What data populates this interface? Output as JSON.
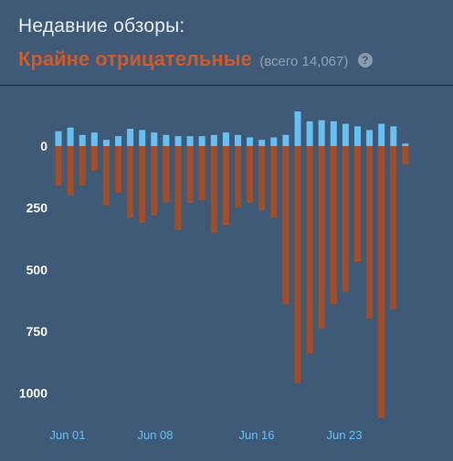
{
  "header": {
    "title": "Недавние обзоры:",
    "rating": "Крайне отрицательные",
    "total": "(всего 14,067)",
    "help_glyph": "?"
  },
  "colors": {
    "positive": "#66c0f4",
    "negative": "#a34c25",
    "rating": "#d05a2a",
    "background": "#3e5a77"
  },
  "chart_data": {
    "type": "bar",
    "x_tick_labels": [
      "Jun 01",
      "Jun 08",
      "Jun 16",
      "Jun 23"
    ],
    "y_tick_labels": [
      "0",
      "250",
      "500",
      "750",
      "1000"
    ],
    "y_tick_values": [
      0,
      250,
      500,
      750,
      1000
    ],
    "ylim": [
      -150,
      1100
    ],
    "grid": false,
    "series": [
      {
        "color": "#66c0f4",
        "values": [
          60,
          75,
          45,
          55,
          25,
          40,
          70,
          65,
          55,
          45,
          40,
          40,
          40,
          45,
          55,
          45,
          35,
          25,
          35,
          45,
          140,
          100,
          105,
          100,
          90,
          80,
          65,
          90,
          80,
          10
        ]
      },
      {
        "color": "#a34c25",
        "values": [
          160,
          200,
          160,
          100,
          240,
          190,
          290,
          310,
          280,
          230,
          340,
          230,
          220,
          350,
          320,
          250,
          230,
          260,
          290,
          640,
          960,
          840,
          740,
          640,
          590,
          470,
          700,
          1100,
          660,
          75
        ]
      }
    ]
  }
}
